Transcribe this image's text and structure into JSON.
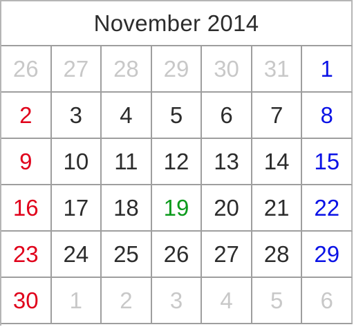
{
  "calendar": {
    "title": "November 2014",
    "colors": {
      "sunday": "#e0001a",
      "saturday": "#0a12e6",
      "today": "#0b9a1b",
      "weekday": "#2c2c2c",
      "outside_month": "#c8c8c8"
    },
    "weeks": [
      [
        {
          "day": "26",
          "type": "outside"
        },
        {
          "day": "27",
          "type": "outside"
        },
        {
          "day": "28",
          "type": "outside"
        },
        {
          "day": "29",
          "type": "outside"
        },
        {
          "day": "30",
          "type": "outside"
        },
        {
          "day": "31",
          "type": "outside"
        },
        {
          "day": "1",
          "type": "saturday"
        }
      ],
      [
        {
          "day": "2",
          "type": "sunday"
        },
        {
          "day": "3",
          "type": "weekday"
        },
        {
          "day": "4",
          "type": "weekday"
        },
        {
          "day": "5",
          "type": "weekday"
        },
        {
          "day": "6",
          "type": "weekday"
        },
        {
          "day": "7",
          "type": "weekday"
        },
        {
          "day": "8",
          "type": "saturday"
        }
      ],
      [
        {
          "day": "9",
          "type": "sunday"
        },
        {
          "day": "10",
          "type": "weekday"
        },
        {
          "day": "11",
          "type": "weekday"
        },
        {
          "day": "12",
          "type": "weekday"
        },
        {
          "day": "13",
          "type": "weekday"
        },
        {
          "day": "14",
          "type": "weekday"
        },
        {
          "day": "15",
          "type": "saturday"
        }
      ],
      [
        {
          "day": "16",
          "type": "sunday"
        },
        {
          "day": "17",
          "type": "weekday"
        },
        {
          "day": "18",
          "type": "weekday"
        },
        {
          "day": "19",
          "type": "today"
        },
        {
          "day": "20",
          "type": "weekday"
        },
        {
          "day": "21",
          "type": "weekday"
        },
        {
          "day": "22",
          "type": "saturday"
        }
      ],
      [
        {
          "day": "23",
          "type": "sunday"
        },
        {
          "day": "24",
          "type": "weekday"
        },
        {
          "day": "25",
          "type": "weekday"
        },
        {
          "day": "26",
          "type": "weekday"
        },
        {
          "day": "27",
          "type": "weekday"
        },
        {
          "day": "28",
          "type": "weekday"
        },
        {
          "day": "29",
          "type": "saturday"
        }
      ],
      [
        {
          "day": "30",
          "type": "sunday"
        },
        {
          "day": "1",
          "type": "outside"
        },
        {
          "day": "2",
          "type": "outside"
        },
        {
          "day": "3",
          "type": "outside"
        },
        {
          "day": "4",
          "type": "outside"
        },
        {
          "day": "5",
          "type": "outside"
        },
        {
          "day": "6",
          "type": "outside"
        }
      ]
    ]
  }
}
